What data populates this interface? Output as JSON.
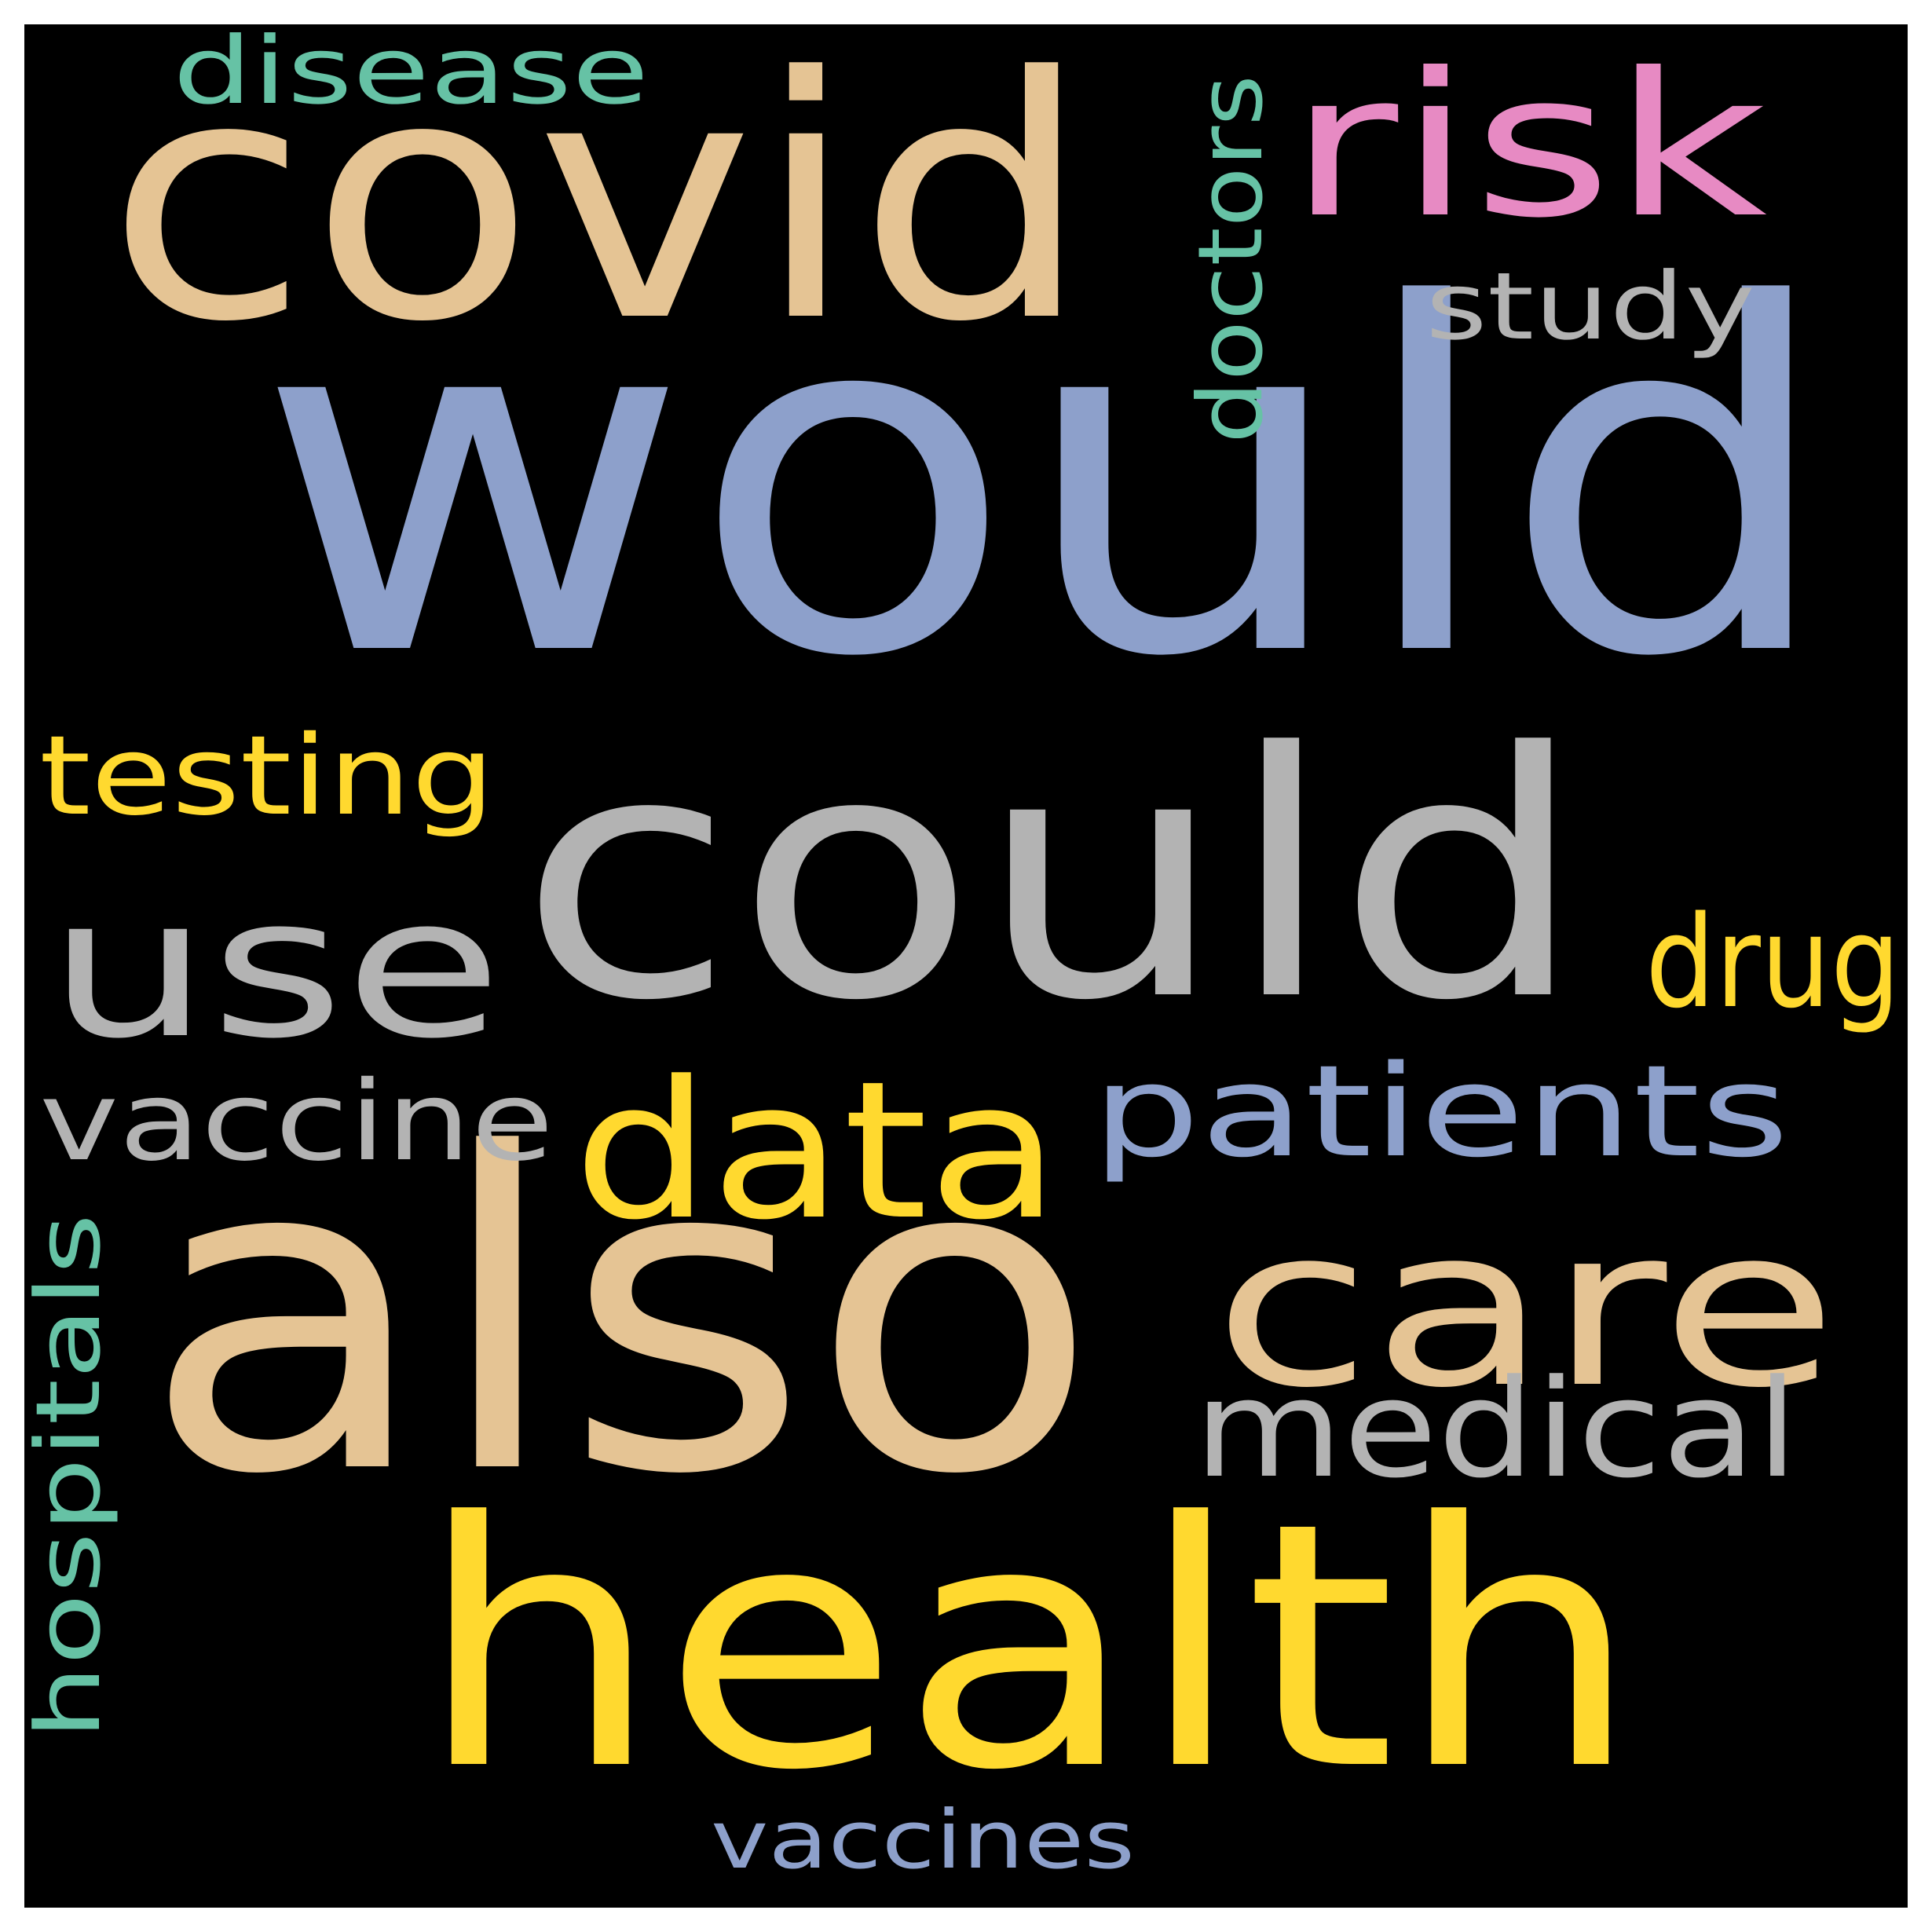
{
  "background": "#000000",
  "frame": "#ffffff",
  "words": [
    {
      "key": "would",
      "text": "would",
      "color": "#8da0cb"
    },
    {
      "key": "could",
      "text": "could",
      "color": "#b3b3b3"
    },
    {
      "key": "also",
      "text": "also",
      "color": "#e5c494"
    },
    {
      "key": "health",
      "text": "health",
      "color": "#ffd92f"
    },
    {
      "key": "covid",
      "text": "covid",
      "color": "#e5c494"
    },
    {
      "key": "use",
      "text": "use",
      "color": "#b3b3b3"
    },
    {
      "key": "care",
      "text": "care",
      "color": "#e5c494"
    },
    {
      "key": "risk",
      "text": "risk",
      "color": "#e78ac3"
    },
    {
      "key": "data",
      "text": "data",
      "color": "#ffd92f"
    },
    {
      "key": "patients",
      "text": "patients",
      "color": "#8da0cb"
    },
    {
      "key": "medical",
      "text": "medical",
      "color": "#b3b3b3"
    },
    {
      "key": "vaccine",
      "text": "vaccine",
      "color": "#b3b3b3"
    },
    {
      "key": "testing",
      "text": "testing",
      "color": "#ffd92f"
    },
    {
      "key": "drug",
      "text": "drug",
      "color": "#ffd92f"
    },
    {
      "key": "disease",
      "text": "disease",
      "color": "#66c2a5"
    },
    {
      "key": "study",
      "text": "study",
      "color": "#b3b3b3"
    },
    {
      "key": "doctors",
      "text": "doctors",
      "color": "#66c2a5"
    },
    {
      "key": "hospitals",
      "text": "hospitals",
      "color": "#66c2a5"
    },
    {
      "key": "vaccines",
      "text": "vaccines",
      "color": "#8da0cb"
    }
  ]
}
